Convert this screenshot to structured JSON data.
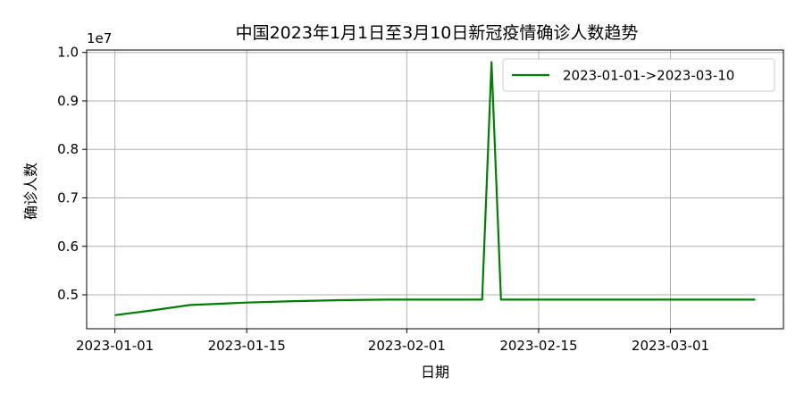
{
  "chart_data": {
    "type": "line",
    "title": "中国2023年1月1日至3月10日新冠疫情确诊人数趋势",
    "xlabel": "日期",
    "ylabel": "确诊人数",
    "y_scale_label": "1e7",
    "grid": true,
    "legend_position": "top-right",
    "xlim": [
      "2022-12-29",
      "2023-03-13"
    ],
    "ylim": [
      0.43,
      1.005
    ],
    "x_ticks": [
      "2023-01-01",
      "2023-01-15",
      "2023-02-01",
      "2023-02-15",
      "2023-03-01"
    ],
    "y_ticks": [
      0.5,
      0.6,
      0.7,
      0.8,
      0.9,
      1.0
    ],
    "y_tick_labels": [
      "0.5",
      "0.6",
      "0.7",
      "0.8",
      "0.9",
      "1.0"
    ],
    "series": [
      {
        "name": "2023-01-01->2023-03-10",
        "color": "#008000",
        "x": [
          "2023-01-01",
          "2023-01-05",
          "2023-01-09",
          "2023-01-15",
          "2023-01-20",
          "2023-01-25",
          "2023-01-30",
          "2023-02-09",
          "2023-02-10",
          "2023-02-11",
          "2023-03-10"
        ],
        "values": [
          0.458,
          0.468,
          0.479,
          0.484,
          0.487,
          0.489,
          0.49,
          0.49,
          0.98,
          0.49,
          0.49
        ]
      }
    ]
  }
}
